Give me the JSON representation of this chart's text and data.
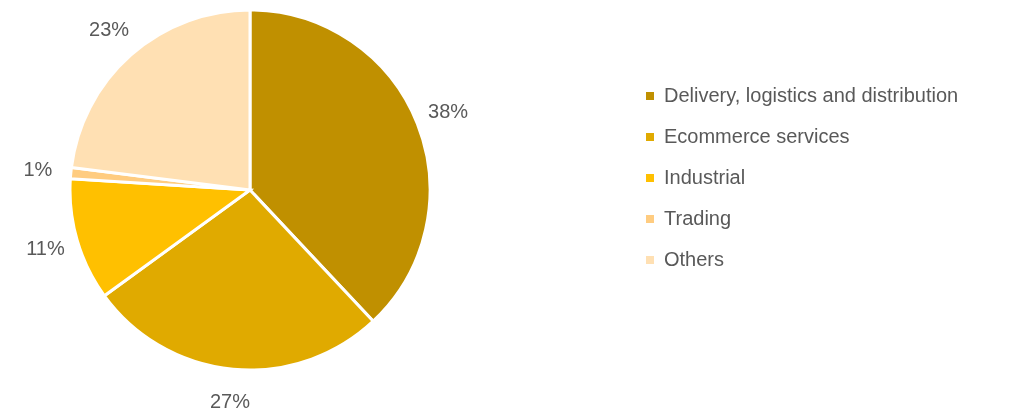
{
  "chart_data": {
    "type": "pie",
    "categories": [
      "Delivery, logistics and distribution",
      "Ecommerce services",
      "Industrial",
      "Trading",
      "Others"
    ],
    "values": [
      38,
      27,
      11,
      1,
      23
    ],
    "colors": [
      "#c09000",
      "#e0aa00",
      "#ffc000",
      "#ffcc80",
      "#ffe0b3"
    ],
    "value_labels": [
      "38%",
      "27%",
      "11%",
      "1%",
      "23%"
    ],
    "legend": "right"
  }
}
